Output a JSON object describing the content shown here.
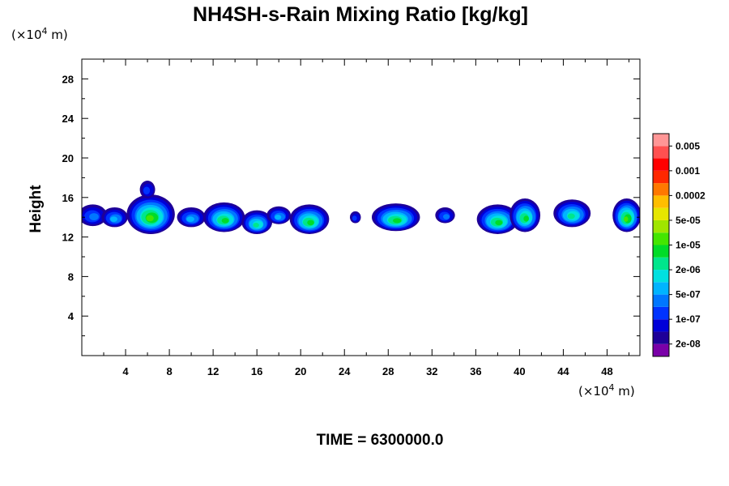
{
  "chart_data": {
    "type": "heatmap",
    "title": "NH4SH-s-Rain Mixing Ratio [kg/kg]",
    "ylabel": "Height",
    "x_unit_prefix": "(×10",
    "x_unit_exp": "4",
    "x_unit_suffix": " m)",
    "y_unit_prefix": "(×10",
    "y_unit_exp": "4",
    "y_unit_suffix": " m)",
    "xlim": [
      0,
      51
    ],
    "ylim": [
      0,
      30
    ],
    "x_ticks": [
      4,
      8,
      12,
      16,
      20,
      24,
      28,
      32,
      36,
      40,
      44,
      48
    ],
    "x_tick_labels": [
      "4",
      "8",
      "12",
      "16",
      "20",
      "24",
      "28",
      "32",
      "36",
      "40",
      "44",
      "48"
    ],
    "y_ticks": [
      4,
      8,
      12,
      16,
      20,
      24,
      28
    ],
    "y_tick_labels": [
      "4",
      "8",
      "12",
      "16",
      "20",
      "24",
      "28"
    ],
    "colorbar": {
      "colors": [
        "#7a00a8",
        "#1e0098",
        "#0000d8",
        "#0033ff",
        "#0077ff",
        "#00b4ff",
        "#00e0e0",
        "#00e68c",
        "#00dc28",
        "#44e600",
        "#a0e600",
        "#e6e600",
        "#ffbe00",
        "#ff7800",
        "#ff2800",
        "#ff0000",
        "#ff5050",
        "#ff9696"
      ],
      "labels": [
        "2e-08",
        "1e-07",
        "5e-07",
        "2e-06",
        "1e-05",
        "5e-05",
        "0.0002",
        "0.001",
        "0.005"
      ]
    },
    "cells": [
      {
        "x": 1.0,
        "y": 14.2,
        "rx": 1.3,
        "ry": 1.1,
        "level": 3
      },
      {
        "x": 3.0,
        "y": 14.0,
        "rx": 1.2,
        "ry": 1.0,
        "level": 4
      },
      {
        "x": 6.3,
        "y": 14.3,
        "rx": 2.2,
        "ry": 2.0,
        "level": 8
      },
      {
        "x": 6.0,
        "y": 16.8,
        "rx": 0.7,
        "ry": 0.9,
        "level": 2
      },
      {
        "x": 10.0,
        "y": 14.0,
        "rx": 1.3,
        "ry": 1.0,
        "level": 4
      },
      {
        "x": 13.0,
        "y": 14.0,
        "rx": 1.9,
        "ry": 1.5,
        "level": 7
      },
      {
        "x": 16.0,
        "y": 13.5,
        "rx": 1.4,
        "ry": 1.2,
        "level": 6
      },
      {
        "x": 18.0,
        "y": 14.2,
        "rx": 1.1,
        "ry": 0.9,
        "level": 4
      },
      {
        "x": 20.8,
        "y": 13.8,
        "rx": 1.8,
        "ry": 1.5,
        "level": 7
      },
      {
        "x": 25.0,
        "y": 14.0,
        "rx": 0.5,
        "ry": 0.6,
        "level": 2
      },
      {
        "x": 28.7,
        "y": 14.0,
        "rx": 2.2,
        "ry": 1.4,
        "level": 7
      },
      {
        "x": 33.2,
        "y": 14.2,
        "rx": 0.9,
        "ry": 0.8,
        "level": 3
      },
      {
        "x": 38.0,
        "y": 13.8,
        "rx": 1.9,
        "ry": 1.5,
        "level": 7
      },
      {
        "x": 40.5,
        "y": 14.2,
        "rx": 1.4,
        "ry": 1.7,
        "level": 7
      },
      {
        "x": 44.8,
        "y": 14.4,
        "rx": 1.7,
        "ry": 1.4,
        "level": 6
      },
      {
        "x": 49.8,
        "y": 14.2,
        "rx": 1.3,
        "ry": 1.7,
        "level": 8
      }
    ]
  },
  "footer": {
    "time_label": "TIME = 6300000.0"
  }
}
